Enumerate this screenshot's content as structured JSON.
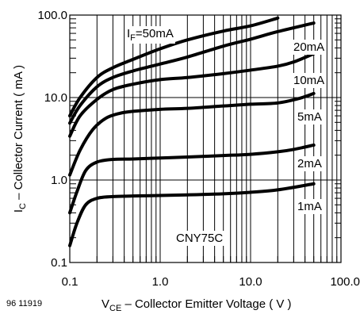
{
  "chart_data": {
    "type": "line",
    "device": "CNY75C",
    "figure_id": "96 11919",
    "xlabel": {
      "main": "V",
      "sub": "CE",
      "rest": " – Collector Emitter Voltage ( V )"
    },
    "ylabel": {
      "main": "I",
      "sub": "C",
      "rest": " – Collector Current ( mA )"
    },
    "x_scale": "log",
    "y_scale": "log",
    "xlim": [
      0.1,
      100.0
    ],
    "ylim": [
      0.1,
      100.0
    ],
    "x_ticks": [
      "0.1",
      "1.0",
      "10.0",
      "100.0"
    ],
    "y_ticks": [
      "0.1",
      "1.0",
      "10.0",
      "100.0"
    ],
    "grid": true,
    "series": [
      {
        "name": "50mA",
        "label_prefix": "I",
        "label_sub": "F",
        "label_suffix": "=50mA",
        "points": [
          [
            0.1,
            6.0
          ],
          [
            0.13,
            10.0
          ],
          [
            0.2,
            17.5
          ],
          [
            0.3,
            23.0
          ],
          [
            0.5,
            29.0
          ],
          [
            1,
            39.0
          ],
          [
            2,
            50.0
          ],
          [
            5,
            64.0
          ],
          [
            10,
            74.0
          ],
          [
            20,
            92.0
          ]
        ]
      },
      {
        "name": "20mA",
        "points": [
          [
            0.1,
            4.9
          ],
          [
            0.13,
            8.0
          ],
          [
            0.2,
            13.5
          ],
          [
            0.3,
            17.5
          ],
          [
            0.5,
            21.0
          ],
          [
            1,
            25.5
          ],
          [
            2,
            31.0
          ],
          [
            5,
            42.0
          ],
          [
            10,
            51.0
          ],
          [
            20,
            63.0
          ],
          [
            50,
            80.0
          ]
        ]
      },
      {
        "name": "10mA",
        "points": [
          [
            0.1,
            3.4
          ],
          [
            0.13,
            6.0
          ],
          [
            0.2,
            9.5
          ],
          [
            0.3,
            12.5
          ],
          [
            0.5,
            14.5
          ],
          [
            1,
            16.5
          ],
          [
            2,
            17.5
          ],
          [
            5,
            19.5
          ],
          [
            10,
            21.5
          ],
          [
            20,
            24.0
          ],
          [
            30,
            27.0
          ],
          [
            50,
            34.0
          ]
        ]
      },
      {
        "name": "5mA",
        "points": [
          [
            0.1,
            1.15
          ],
          [
            0.13,
            2.3
          ],
          [
            0.18,
            4.1
          ],
          [
            0.25,
            5.6
          ],
          [
            0.35,
            6.4
          ],
          [
            0.5,
            6.8
          ],
          [
            1,
            7.2
          ],
          [
            2,
            7.4
          ],
          [
            5,
            7.9
          ],
          [
            10,
            8.3
          ],
          [
            20,
            8.6
          ],
          [
            35,
            9.8
          ],
          [
            50,
            11.2
          ]
        ]
      },
      {
        "name": "2mA",
        "points": [
          [
            0.1,
            0.4
          ],
          [
            0.12,
            0.72
          ],
          [
            0.15,
            1.3
          ],
          [
            0.2,
            1.65
          ],
          [
            0.3,
            1.78
          ],
          [
            0.5,
            1.8
          ],
          [
            1,
            1.85
          ],
          [
            2,
            1.9
          ],
          [
            5,
            1.98
          ],
          [
            10,
            2.05
          ],
          [
            20,
            2.2
          ],
          [
            30,
            2.35
          ],
          [
            50,
            2.65
          ]
        ]
      },
      {
        "name": "1mA",
        "points": [
          [
            0.1,
            0.16
          ],
          [
            0.12,
            0.3
          ],
          [
            0.15,
            0.5
          ],
          [
            0.2,
            0.6
          ],
          [
            0.3,
            0.63
          ],
          [
            0.5,
            0.64
          ],
          [
            1,
            0.65
          ],
          [
            2,
            0.66
          ],
          [
            5,
            0.68
          ],
          [
            10,
            0.71
          ],
          [
            20,
            0.76
          ],
          [
            50,
            0.9
          ]
        ]
      }
    ]
  }
}
